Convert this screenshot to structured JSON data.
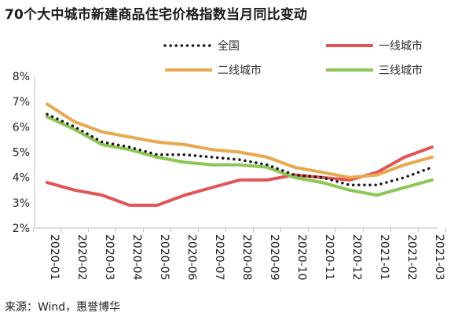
{
  "title": "70个大中城市新建商品住宅价格指数当月同比变动",
  "source": "来源：Wind，惠誉博华",
  "chart_data": {
    "type": "line",
    "categories": [
      "2020-01",
      "2020-02",
      "2020-03",
      "2020-04",
      "2020-05",
      "2020-06",
      "2020-07",
      "2020-08",
      "2020-09",
      "2020-10",
      "2020-11",
      "2020-12",
      "2021-01",
      "2021-02",
      "2021-03"
    ],
    "y_ticks": [
      "8%",
      "7%",
      "6%",
      "5%",
      "4%",
      "3%",
      "2%"
    ],
    "ylim": [
      2,
      8
    ],
    "grid": false,
    "legend_position": "top",
    "series": [
      {
        "name": "全国",
        "color": "#1a1a1a",
        "style": "dotted",
        "values": [
          6.5,
          6.0,
          5.4,
          5.2,
          4.9,
          4.9,
          4.8,
          4.7,
          4.5,
          4.1,
          4.0,
          3.7,
          3.7,
          4.0,
          4.4
        ]
      },
      {
        "name": "一线城市",
        "color": "#e05555",
        "style": "solid",
        "values": [
          3.8,
          3.5,
          3.3,
          2.9,
          2.9,
          3.3,
          3.6,
          3.9,
          3.9,
          4.1,
          4.0,
          3.9,
          4.2,
          4.8,
          5.2
        ]
      },
      {
        "name": "二线城市",
        "color": "#e8a94e",
        "style": "solid",
        "values": [
          6.9,
          6.2,
          5.8,
          5.6,
          5.4,
          5.3,
          5.1,
          5.0,
          4.8,
          4.4,
          4.2,
          4.0,
          4.1,
          4.5,
          4.8
        ]
      },
      {
        "name": "三线城市",
        "color": "#8cc653",
        "style": "solid",
        "values": [
          6.4,
          5.9,
          5.3,
          5.1,
          4.8,
          4.6,
          4.5,
          4.5,
          4.4,
          4.0,
          3.8,
          3.5,
          3.3,
          3.6,
          3.9
        ]
      }
    ]
  }
}
